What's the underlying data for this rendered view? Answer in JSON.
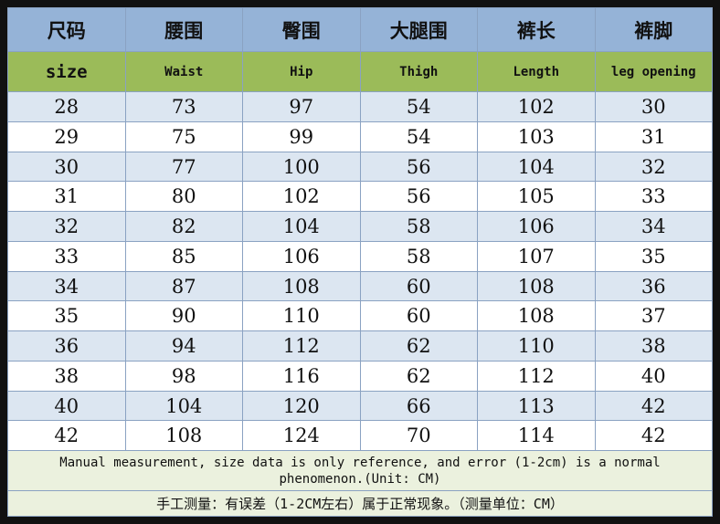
{
  "table": {
    "header_cn": [
      "尺码",
      "腰围",
      "臀围",
      "大腿围",
      "裤长",
      "裤脚"
    ],
    "header_en": [
      "size",
      "Waist",
      "Hip",
      "Thigh",
      "Length",
      "leg opening"
    ],
    "rows": [
      [
        28,
        73,
        97,
        54,
        102,
        30
      ],
      [
        29,
        75,
        99,
        54,
        103,
        31
      ],
      [
        30,
        77,
        100,
        56,
        104,
        32
      ],
      [
        31,
        80,
        102,
        56,
        105,
        33
      ],
      [
        32,
        82,
        104,
        58,
        106,
        34
      ],
      [
        33,
        85,
        106,
        58,
        107,
        35
      ],
      [
        34,
        87,
        108,
        60,
        108,
        36
      ],
      [
        35,
        90,
        110,
        60,
        108,
        37
      ],
      [
        36,
        94,
        112,
        62,
        110,
        38
      ],
      [
        38,
        98,
        116,
        62,
        112,
        40
      ],
      [
        40,
        104,
        120,
        66,
        113,
        42
      ],
      [
        42,
        108,
        124,
        70,
        114,
        42
      ]
    ]
  },
  "notes": {
    "english": "Manual measurement, size data is only reference, and error (1-2cm) is a normal phenomenon.(Unit: CM)",
    "chinese": "手工测量：有误差（1-2CM左右）属于正常现象。（测量单位：CM）"
  }
}
